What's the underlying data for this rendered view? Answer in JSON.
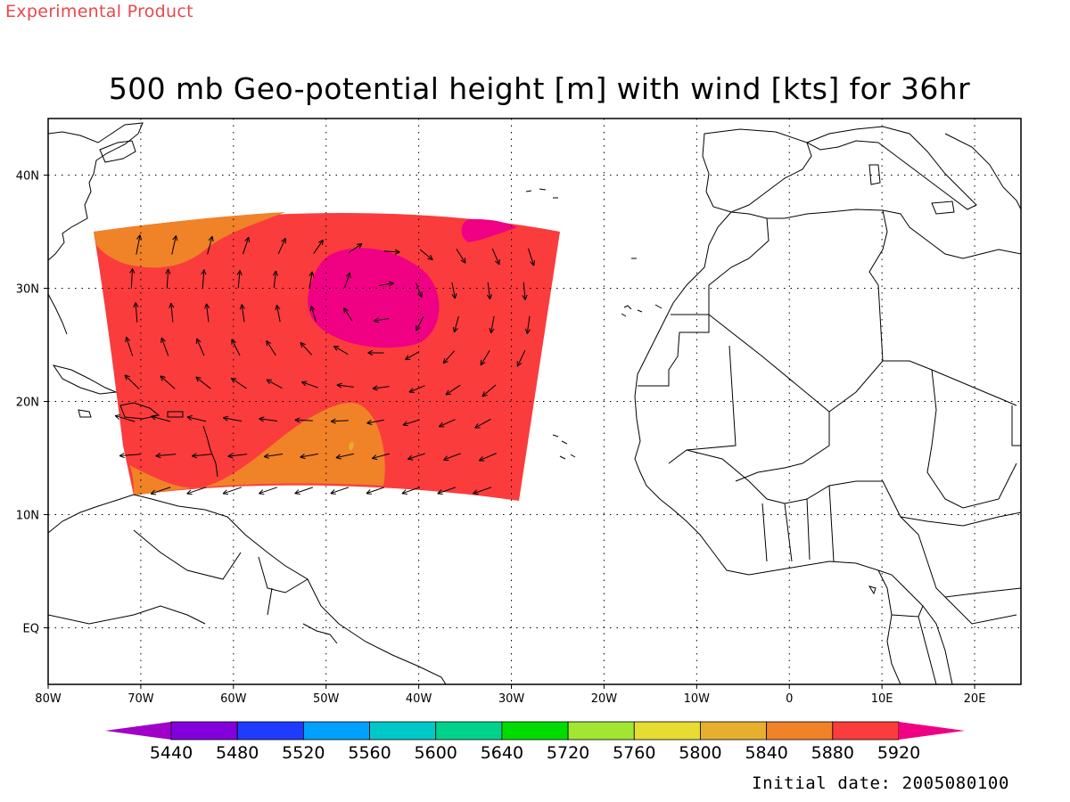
{
  "header": {
    "experimental": "Experimental Product",
    "title": "500 mb Geo-potential height [m] with wind [kts] for 36hr"
  },
  "footer": {
    "initial_date": "Initial date: 2005080100"
  },
  "map": {
    "projection": "lat-lon",
    "lon_range": [
      -80,
      25
    ],
    "lat_range": [
      -5,
      45
    ],
    "grid": "dotted",
    "lon_labels": [
      {
        "lon": -80,
        "text": "80W"
      },
      {
        "lon": -70,
        "text": "70W"
      },
      {
        "lon": -60,
        "text": "60W"
      },
      {
        "lon": -50,
        "text": "50W"
      },
      {
        "lon": -40,
        "text": "40W"
      },
      {
        "lon": -30,
        "text": "30W"
      },
      {
        "lon": -20,
        "text": "20W"
      },
      {
        "lon": -10,
        "text": "10W"
      },
      {
        "lon": 0,
        "text": "0"
      },
      {
        "lon": 10,
        "text": "10E"
      },
      {
        "lon": 20,
        "text": "20E"
      }
    ],
    "lat_labels": [
      {
        "lat": 40,
        "text": "40N"
      },
      {
        "lat": 30,
        "text": "30N"
      },
      {
        "lat": 20,
        "text": "20N"
      },
      {
        "lat": 10,
        "text": "10N"
      },
      {
        "lat": 0,
        "text": "EQ"
      }
    ]
  },
  "colorbar": {
    "colors": [
      "#a000c8",
      "#8200dc",
      "#1e3cff",
      "#00a0ff",
      "#00c8c8",
      "#00d28c",
      "#00dc00",
      "#a0e632",
      "#e6dc32",
      "#e6af2d",
      "#f08228",
      "#fa3c3c",
      "#f00082"
    ],
    "labels": [
      "5440",
      "5480",
      "5520",
      "5560",
      "5600",
      "5640",
      "5720",
      "5760",
      "5800",
      "5840",
      "5880",
      "5920"
    ]
  },
  "field": {
    "fill_5880_5920": "#fa3c3c",
    "fill_5840_5880": "#f08228",
    "fill_above_5920": "#f00082",
    "fill_5800_5840": "#e6af2d"
  }
}
